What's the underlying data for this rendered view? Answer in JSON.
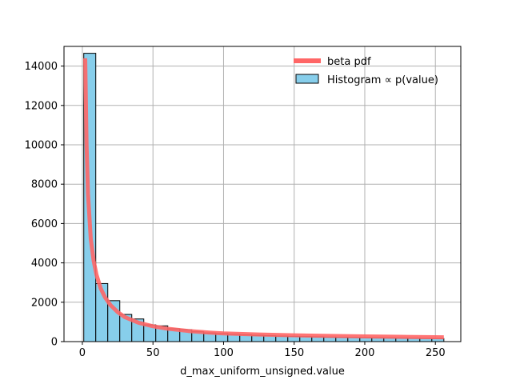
{
  "chart_data": {
    "type": "bar",
    "xlabel": "d_max_uniform_unsigned.value",
    "ylabel": "",
    "xlim": [
      -13,
      268
    ],
    "ylim": [
      0,
      15000
    ],
    "xticks": [
      0,
      50,
      100,
      150,
      200,
      250
    ],
    "yticks": [
      0,
      2000,
      4000,
      6000,
      8000,
      10000,
      12000,
      14000
    ],
    "grid": true,
    "legend_position": "top-right",
    "legend": [
      {
        "label": "beta pdf",
        "kind": "line",
        "color": "#ff6666"
      },
      {
        "label": "Histogram ∝ p(value)",
        "kind": "patch",
        "color": "#87ceeb"
      }
    ],
    "histogram": {
      "name": "Histogram ∝ p(value)",
      "color": "#87ceeb",
      "edgecolor": "#000000",
      "bin_start": 1,
      "bin_width": 8.5,
      "values": [
        14650,
        2950,
        2080,
        1380,
        1150,
        850,
        800,
        650,
        610,
        500,
        440,
        410,
        370,
        340,
        320,
        300,
        280,
        270,
        255,
        240,
        230,
        220,
        210,
        200,
        190,
        185,
        175,
        170,
        160,
        155
      ]
    },
    "series": [
      {
        "name": "beta pdf",
        "type": "line",
        "color": "#ff6666",
        "x": [
          2,
          3,
          4,
          6,
          8,
          10,
          13,
          16,
          20,
          25,
          30,
          40,
          50,
          60,
          75,
          90,
          100,
          125,
          150,
          175,
          200,
          225,
          256
        ],
        "y": [
          14400,
          10000,
          7500,
          5200,
          4100,
          3400,
          2700,
          2250,
          1850,
          1500,
          1250,
          950,
          780,
          660,
          540,
          460,
          420,
          360,
          320,
          290,
          265,
          245,
          220
        ]
      }
    ]
  }
}
